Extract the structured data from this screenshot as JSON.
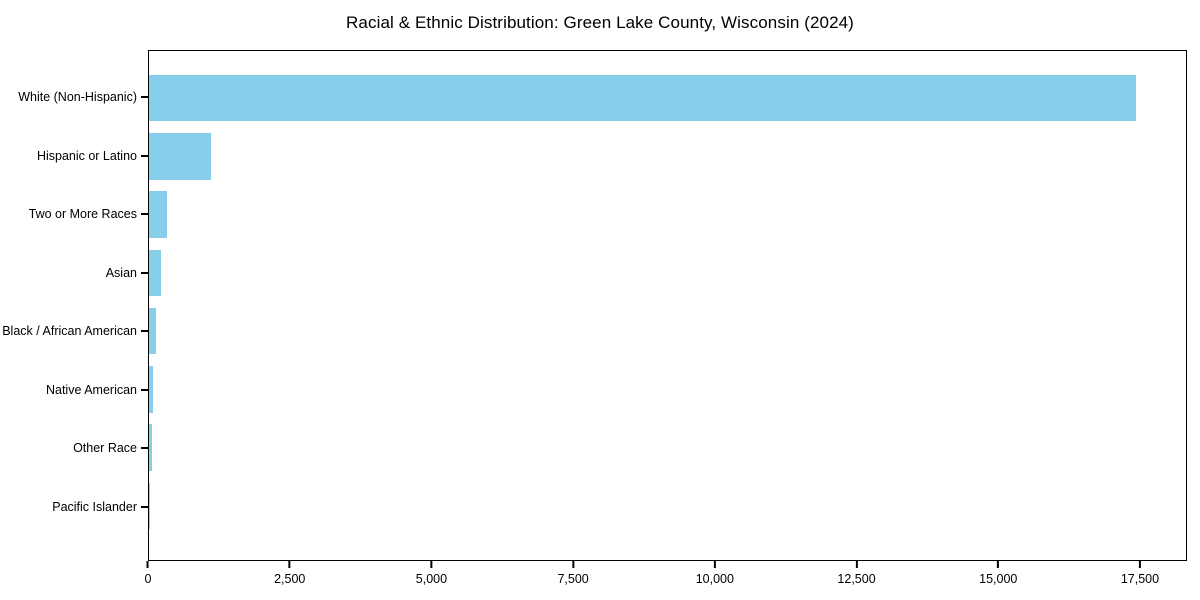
{
  "title": "Racial & Ethnic Distribution: Green Lake County, Wisconsin (2024)",
  "colors": {
    "bar": "#87CEEB",
    "axis": "#000000",
    "text": "#000000",
    "background": "#FFFFFF"
  },
  "chart_data": {
    "type": "bar",
    "orientation": "horizontal",
    "title": "Racial & Ethnic Distribution: Green Lake County, Wisconsin (2024)",
    "xlabel": "",
    "ylabel": "",
    "categories": [
      "White (Non-Hispanic)",
      "Hispanic or Latino",
      "Two or More Races",
      "Asian",
      "Black / African American",
      "Native American",
      "Other Race",
      "Pacific Islander"
    ],
    "values": [
      17450,
      1100,
      325,
      220,
      115,
      70,
      50,
      5
    ],
    "xlim": [
      0,
      18330
    ],
    "xticks": [
      0,
      2500,
      5000,
      7500,
      10000,
      12500,
      15000,
      17500
    ],
    "xtick_labels": [
      "0",
      "2,500",
      "5,000",
      "7,500",
      "10,000",
      "12,500",
      "15,000",
      "17,500"
    ],
    "grid": false,
    "legend": "none",
    "bar_color": "#87CEEB"
  }
}
